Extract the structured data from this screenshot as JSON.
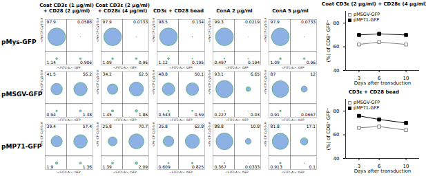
{
  "chart_data": [
    {
      "type": "flow_quadrant",
      "columns": [
        "Coat CD3ε (1 μg/ml)\n+ CD28 (2 μg/ml)",
        "Coat CD3ε (2 μg/ml)\n+ CD28ε (4 μg/ml)",
        "CD3ε + CD28 bead",
        "ConA 2 μg/ml",
        "ConA 5 μg/ml"
      ],
      "rows": [
        "pMys-GFP",
        "pMSGV-GFP",
        "pMP71-GFP"
      ],
      "xlabel": "<FITC-A>: GFP",
      "ylabel": "<PerCP-Cy5-5-A>: mCD8a",
      "data_labels": true,
      "quadrants": [
        [
          [
            97.9,
            0.0586,
            1.14,
            0.906
          ],
          [
            97.9,
            0.0733,
            1.09,
            0.96
          ],
          [
            98.5,
            0.134,
            1.12,
            0.195
          ],
          [
            99.3,
            0.0219,
            0.497,
            0.194
          ],
          [
            97.9,
            0.0733,
            1.09,
            0.96
          ]
        ],
        [
          [
            41.5,
            56.2,
            0.94,
            1.38
          ],
          [
            34.2,
            62.5,
            1.45,
            1.86
          ],
          [
            48.8,
            50.1,
            0.543,
            0.59
          ],
          [
            93.1,
            6.65,
            0.227,
            0.03
          ],
          [
            87,
            12,
            0.91,
            0.0667
          ]
        ],
        [
          [
            39.4,
            57.4,
            1.9,
            1.36
          ],
          [
            25.8,
            70.7,
            1.39,
            2.09
          ],
          [
            35.8,
            62.8,
            0.609,
            0.825
          ],
          [
            88.8,
            10.8,
            0.367,
            0.0333
          ],
          [
            81.8,
            17.1,
            0.913,
            0.1
          ]
        ]
      ]
    },
    {
      "type": "line",
      "title": "Coat CD3ε (2 μg/ml) + CD28ε (4 μg/ml)",
      "xlabel": "Days after transduction",
      "ylabel": "(%) of CD8⁺ GFP⁺",
      "x": [
        3,
        6,
        10
      ],
      "xlim": [
        1,
        12
      ],
      "xticks": [
        3,
        6,
        10
      ],
      "ylim": [
        40,
        90
      ],
      "yticks": [
        40,
        60,
        80
      ],
      "legend": "top-left",
      "series": [
        {
          "name": "pMSGV-GFP",
          "color": "#808080",
          "marker": "square-open",
          "values": [
            62,
            64,
            62
          ]
        },
        {
          "name": "pMP71-GFP",
          "color": "#000000",
          "marker": "square",
          "values": [
            70,
            71,
            70
          ]
        }
      ]
    },
    {
      "type": "line",
      "title": "CD3ε + CD28 bead",
      "xlabel": "Days after transduction",
      "ylabel": "(%) of CD8⁺ GFP⁺",
      "x": [
        3,
        6,
        10
      ],
      "xlim": [
        1,
        12
      ],
      "xticks": [
        3,
        6,
        10
      ],
      "ylim": [
        40,
        90
      ],
      "yticks": [
        40,
        60,
        80
      ],
      "legend": "top-left",
      "series": [
        {
          "name": "pMSGV-GFP",
          "color": "#808080",
          "marker": "square-open",
          "values": [
            66,
            67,
            64
          ]
        },
        {
          "name": "pMP71-GFP",
          "color": "#000000",
          "marker": "square",
          "values": [
            76,
            73,
            70
          ]
        }
      ]
    }
  ]
}
